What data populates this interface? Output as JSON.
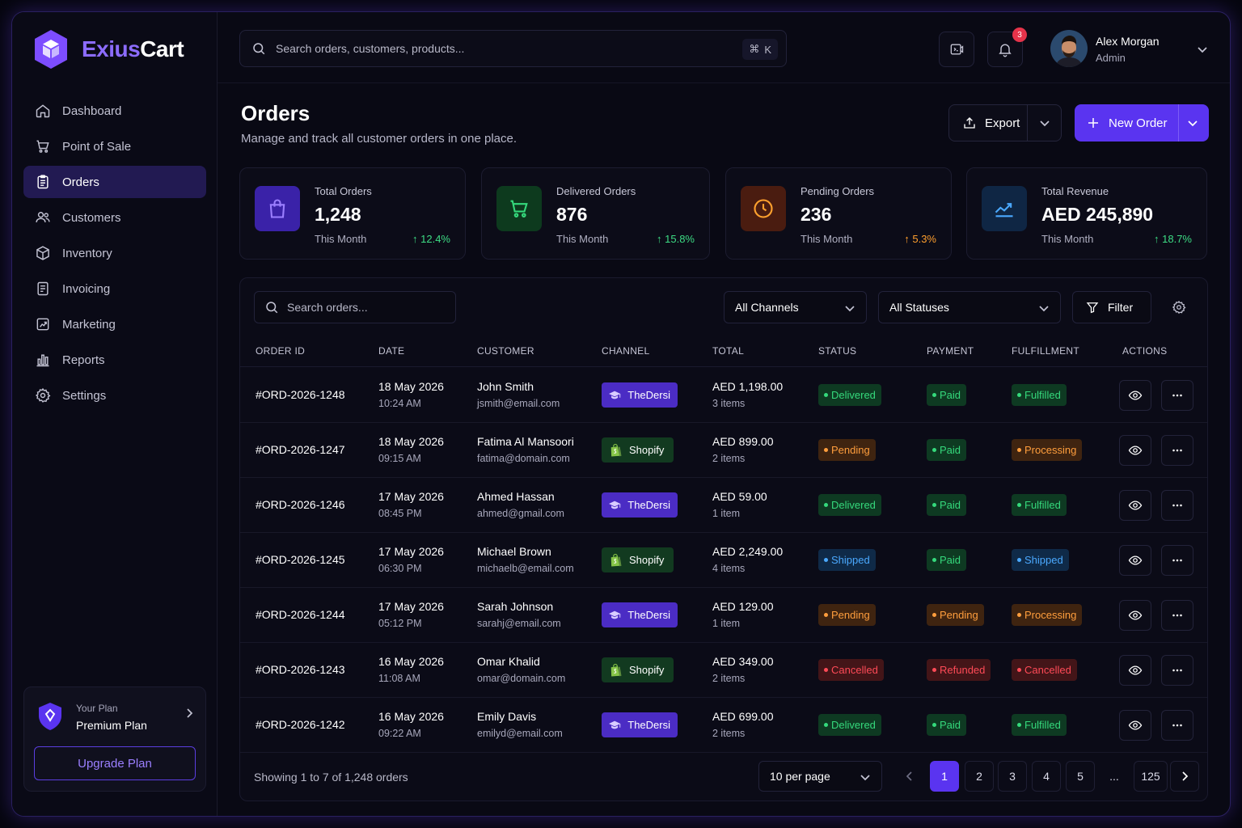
{
  "brand": {
    "part1": "Exius",
    "part2": "Cart",
    "colors": {
      "accent": "#5a34f0",
      "logo": "#7d4dff"
    }
  },
  "sidebar": {
    "items": [
      {
        "label": "Dashboard",
        "icon": "home-icon"
      },
      {
        "label": "Point of Sale",
        "icon": "cart-icon"
      },
      {
        "label": "Orders",
        "icon": "clipboard-icon",
        "active": true
      },
      {
        "label": "Customers",
        "icon": "users-icon"
      },
      {
        "label": "Inventory",
        "icon": "box-icon"
      },
      {
        "label": "Invoicing",
        "icon": "invoice-icon"
      },
      {
        "label": "Marketing",
        "icon": "marketing-icon"
      },
      {
        "label": "Reports",
        "icon": "bar-chart-icon"
      },
      {
        "label": "Settings",
        "icon": "gear-icon"
      }
    ],
    "plan": {
      "small": "Your Plan",
      "name": "Premium Plan",
      "upgrade": "Upgrade Plan"
    }
  },
  "topbar": {
    "search_placeholder": "Search orders, customers, products...",
    "shortcut_symbol": "⌘",
    "shortcut_key": "K",
    "notification_count": "3",
    "user": {
      "name": "Alex Morgan",
      "role": "Admin"
    }
  },
  "page": {
    "title": "Orders",
    "subtitle": "Manage and track all customer orders in one place.",
    "export_label": "Export",
    "new_order_label": "New Order"
  },
  "stats": [
    {
      "label": "Total Orders",
      "value": "1,248",
      "period": "This Month",
      "trend": "↑ 12.4%",
      "tone": "green",
      "icon": "shopping-bag-icon"
    },
    {
      "label": "Delivered Orders",
      "value": "876",
      "period": "This Month",
      "trend": "↑ 15.8%",
      "tone": "green",
      "icon": "cart-icon"
    },
    {
      "label": "Pending Orders",
      "value": "236",
      "period": "This Month",
      "trend": "↑ 5.3%",
      "tone": "orange",
      "icon": "clock-icon"
    },
    {
      "label": "Total Revenue",
      "value": "AED 245,890",
      "period": "This Month",
      "trend": "↑ 18.7%",
      "tone": "green",
      "icon": "trend-up-icon"
    }
  ],
  "table": {
    "search_placeholder": "Search orders...",
    "channel_filter": "All Channels",
    "status_filter": "All Statuses",
    "filter_label": "Filter",
    "columns": [
      "ORDER ID",
      "DATE",
      "CUSTOMER",
      "CHANNEL",
      "TOTAL",
      "STATUS",
      "PAYMENT",
      "FULFILLMENT",
      "ACTIONS"
    ],
    "rows": [
      {
        "id": "#ORD-2026-1248",
        "date": "18 May 2026",
        "time": "10:24 AM",
        "customer": "John Smith",
        "email": "jsmith@email.com",
        "channel": "TheDersi",
        "total": "AED 1,198.00",
        "items": "3 items",
        "status": "Delivered",
        "payment": "Paid",
        "fulfillment": "Fulfilled"
      },
      {
        "id": "#ORD-2026-1247",
        "date": "18 May 2026",
        "time": "09:15 AM",
        "customer": "Fatima Al Mansoori",
        "email": "fatima@domain.com",
        "channel": "Shopify",
        "total": "AED 899.00",
        "items": "2 items",
        "status": "Pending",
        "payment": "Paid",
        "fulfillment": "Processing"
      },
      {
        "id": "#ORD-2026-1246",
        "date": "17 May 2026",
        "time": "08:45 PM",
        "customer": "Ahmed Hassan",
        "email": "ahmed@gmail.com",
        "channel": "TheDersi",
        "total": "AED 59.00",
        "items": "1 item",
        "status": "Delivered",
        "payment": "Paid",
        "fulfillment": "Fulfilled"
      },
      {
        "id": "#ORD-2026-1245",
        "date": "17 May 2026",
        "time": "06:30 PM",
        "customer": "Michael Brown",
        "email": "michaelb@email.com",
        "channel": "Shopify",
        "total": "AED 2,249.00",
        "items": "4 items",
        "status": "Shipped",
        "payment": "Paid",
        "fulfillment": "Shipped"
      },
      {
        "id": "#ORD-2026-1244",
        "date": "17 May 2026",
        "time": "05:12 PM",
        "customer": "Sarah Johnson",
        "email": "sarahj@email.com",
        "channel": "TheDersi",
        "total": "AED 129.00",
        "items": "1 item",
        "status": "Pending",
        "payment": "Pending",
        "fulfillment": "Processing"
      },
      {
        "id": "#ORD-2026-1243",
        "date": "16 May 2026",
        "time": "11:08 AM",
        "customer": "Omar Khalid",
        "email": "omar@domain.com",
        "channel": "Shopify",
        "total": "AED 349.00",
        "items": "2 items",
        "status": "Cancelled",
        "payment": "Refunded",
        "fulfillment": "Cancelled"
      },
      {
        "id": "#ORD-2026-1242",
        "date": "16 May 2026",
        "time": "09:22 AM",
        "customer": "Emily Davis",
        "email": "emilyd@email.com",
        "channel": "TheDersi",
        "total": "AED 699.00",
        "items": "2 items",
        "status": "Delivered",
        "payment": "Paid",
        "fulfillment": "Fulfilled"
      }
    ],
    "showing": "Showing 1 to 7 of 1,248 orders",
    "per_page": "10 per page",
    "pages": [
      "1",
      "2",
      "3",
      "4",
      "5",
      "...",
      "125"
    ]
  }
}
